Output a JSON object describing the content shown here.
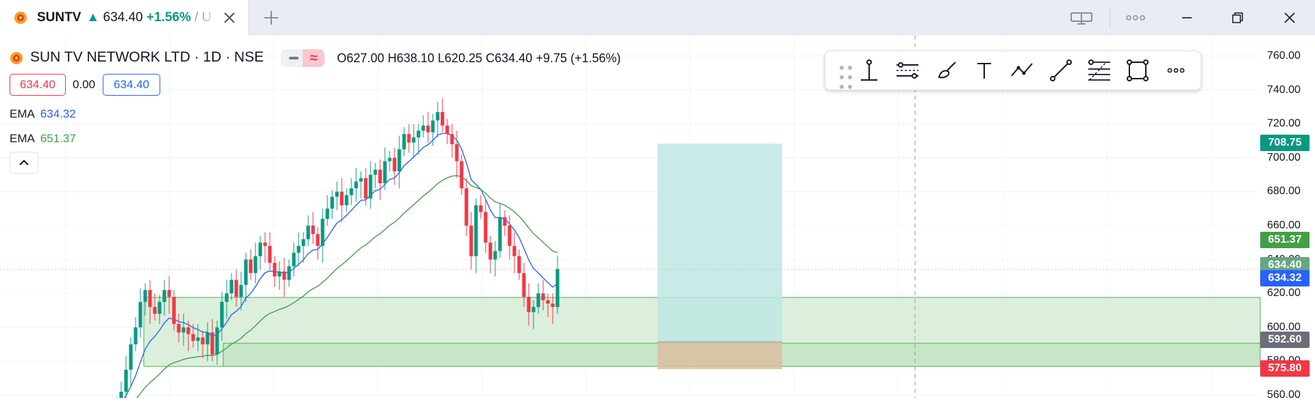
{
  "tab": {
    "ticker": "SUNTV",
    "arrow": "▲",
    "price": "634.40",
    "change_pct": "+1.56%",
    "trail": " / U"
  },
  "legend": {
    "symbol_line": "SUN TV NETWORK LTD · 1D · NSE",
    "open": "O627.00",
    "high": "H638.10",
    "low": "L620.25",
    "close": "C634.40",
    "change": "+9.75 (+1.56%)",
    "bid": "634.40",
    "spread": "0.00",
    "ask": "634.40",
    "ema1_name": "EMA",
    "ema1_value": "634.32",
    "ema2_name": "EMA",
    "ema2_value": "651.37"
  },
  "colors": {
    "up": "#089981",
    "down": "#f23645",
    "ema_fast": "#2962ff",
    "ema_slow": "#43a047",
    "zone_fill": "#dcefdc",
    "zone_border": "#4caf50",
    "target_fill": "#bfe6e3",
    "stop_fill": "#d9bfa0"
  },
  "icons": {
    "drawing_tools": [
      "grip-icon",
      "vertical-line-icon",
      "parallel-channel-icon",
      "brush-icon",
      "text-icon",
      "path-icon",
      "trend-line-icon",
      "fib-retracement-icon",
      "rectangle-icon",
      "more-icon"
    ]
  },
  "price_axis": {
    "ticks": [
      "760.00",
      "740.00",
      "720.00",
      "700.00",
      "680.00",
      "660.00",
      "640.00",
      "620.00",
      "600.00",
      "580.00",
      "560.00"
    ],
    "tags": [
      {
        "name": "target-price-tag",
        "text": "708.75",
        "color": "#089981"
      },
      {
        "name": "ema-slow-tag",
        "text": "651.37",
        "color": "#43a047"
      },
      {
        "name": "last-price-tag",
        "text": "634.40",
        "color": "#66a682"
      },
      {
        "name": "ema-fast-tag",
        "text": "634.32",
        "color": "#2962ff"
      },
      {
        "name": "entry-price-tag",
        "text": "592.60",
        "color": "#6b6e78"
      },
      {
        "name": "stop-price-tag",
        "text": "575.80",
        "color": "#f23645"
      }
    ]
  }
}
